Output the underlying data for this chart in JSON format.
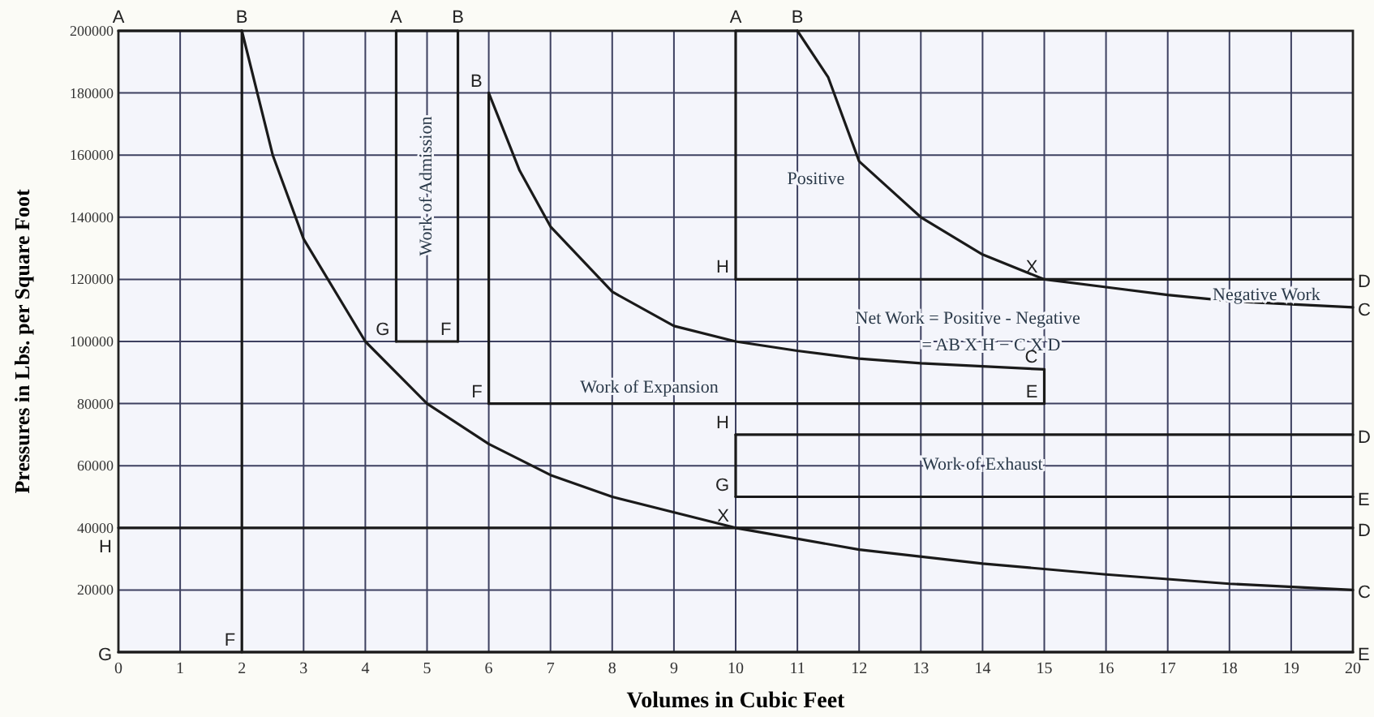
{
  "chart_data": {
    "type": "line",
    "xlabel": "Volumes in Cubic Feet",
    "ylabel": "Pressures in Lbs. per Square Foot",
    "xlim": [
      0,
      20
    ],
    "ylim": [
      0,
      200000
    ],
    "xticks": [
      0,
      1,
      2,
      3,
      4,
      5,
      6,
      7,
      8,
      9,
      10,
      11,
      12,
      13,
      14,
      15,
      16,
      17,
      18,
      19,
      20
    ],
    "yticks": [
      {
        "value": 0,
        "label": null
      },
      20000,
      40000,
      60000,
      80000,
      100000,
      120000,
      140000,
      160000,
      180000,
      200000
    ],
    "grid": true,
    "marker": "none",
    "line_style": "solid",
    "series": [
      {
        "color": "#1a1a1a",
        "x": [
          0,
          2
        ],
        "values": [
          200000,
          200000
        ]
      },
      {
        "color": "#1a1a1a",
        "x": [
          2,
          2.5,
          3,
          4,
          5,
          6,
          7,
          8,
          10,
          12,
          14,
          16,
          18,
          20
        ],
        "values": [
          200000,
          160000,
          133000,
          100000,
          80000,
          67000,
          57000,
          50000,
          40000,
          33000,
          28500,
          25000,
          22000,
          20000
        ]
      },
      {
        "color": "#1a1a1a",
        "x": [
          2,
          2
        ],
        "values": [
          200000,
          0
        ]
      },
      {
        "color": "#1a1a1a",
        "x": [
          0,
          20
        ],
        "values": [
          40000,
          40000
        ]
      },
      {
        "color": "#1a1a1a",
        "x": [
          0,
          20
        ],
        "values": [
          0,
          0
        ]
      },
      {
        "color": "#1a1a1a",
        "x": [
          4.5,
          4.5
        ],
        "values": [
          100000,
          200000
        ]
      },
      {
        "color": "#1a1a1a",
        "x": [
          5.5,
          5.5
        ],
        "values": [
          100000,
          200000
        ]
      },
      {
        "color": "#1a1a1a",
        "x": [
          4.5,
          5.5
        ],
        "values": [
          200000,
          200000
        ]
      },
      {
        "color": "#1a1a1a",
        "x": [
          4.5,
          5.5
        ],
        "values": [
          100000,
          100000
        ]
      },
      {
        "color": "#1a1a1a",
        "x": [
          6,
          15
        ],
        "values": [
          80000,
          80000
        ]
      },
      {
        "color": "#1a1a1a",
        "x": [
          6,
          6
        ],
        "values": [
          80000,
          180000
        ]
      },
      {
        "color": "#1a1a1a",
        "x": [
          6,
          6.5,
          7,
          8,
          9,
          10,
          11,
          12,
          13,
          14,
          15
        ],
        "values": [
          180000,
          155000,
          137000,
          116000,
          105000,
          100000,
          97000,
          94500,
          93000,
          92000,
          91000
        ]
      },
      {
        "color": "#1a1a1a",
        "x": [
          15,
          15
        ],
        "values": [
          80000,
          91000
        ]
      },
      {
        "color": "#1a1a1a",
        "x": [
          10,
          10
        ],
        "values": [
          120000,
          200000
        ]
      },
      {
        "color": "#1a1a1a",
        "x": [
          10,
          11
        ],
        "values": [
          200000,
          200000
        ]
      },
      {
        "color": "#1a1a1a",
        "x": [
          11,
          11.5,
          12,
          13,
          14,
          15,
          16,
          17,
          18,
          19,
          20
        ],
        "values": [
          200000,
          185000,
          158000,
          140000,
          128000,
          120000,
          117500,
          115000,
          113000,
          112000,
          111000
        ]
      },
      {
        "color": "#1a1a1a",
        "x": [
          10,
          20
        ],
        "values": [
          120000,
          120000
        ]
      },
      {
        "color": "#1a1a1a",
        "x": [
          10,
          20
        ],
        "values": [
          70000,
          70000
        ]
      },
      {
        "color": "#1a1a1a",
        "x": [
          10,
          20
        ],
        "values": [
          50000,
          50000
        ]
      },
      {
        "color": "#1a1a1a",
        "x": [
          10,
          10
        ],
        "values": [
          50000,
          70000
        ]
      }
    ],
    "annotations": [
      "Work of Admission",
      "Positive",
      "Net Work = Positive - Negative",
      "= AB X H − C X D",
      "Work of Expansion",
      "Negative Work",
      "Work of Exhaust",
      {
        "text": "A",
        "x": 0,
        "y": 200000
      },
      {
        "text": "B",
        "x": 2,
        "y": 200000
      },
      {
        "text": "F",
        "x": 2,
        "y": 0
      },
      {
        "text": "G",
        "x": 0,
        "y": 0
      },
      {
        "text": "H",
        "x": 0,
        "y": 40000
      },
      {
        "text": "X",
        "x": 10,
        "y": 40000
      },
      {
        "text": "D",
        "x": 20,
        "y": 40000
      },
      {
        "text": "C",
        "x": 20,
        "y": 20000
      },
      {
        "text": "E",
        "x": 20,
        "y": 0
      },
      {
        "text": "A",
        "x": 4.5,
        "y": 200000
      },
      {
        "text": "B",
        "x": 5.5,
        "y": 200000
      },
      {
        "text": "G",
        "x": 4.5,
        "y": 100000
      },
      {
        "text": "F",
        "x": 5.5,
        "y": 100000
      },
      {
        "text": "B",
        "x": 6,
        "y": 180000
      },
      {
        "text": "F",
        "x": 6,
        "y": 80000
      },
      {
        "text": "C",
        "x": 15,
        "y": 91000
      },
      {
        "text": "E",
        "x": 15,
        "y": 80000
      },
      {
        "text": "A",
        "x": 10,
        "y": 200000
      },
      {
        "text": "B",
        "x": 11,
        "y": 200000
      },
      {
        "text": "H",
        "x": 10,
        "y": 120000
      },
      {
        "text": "X",
        "x": 15,
        "y": 120000
      },
      {
        "text": "D",
        "x": 20,
        "y": 120000
      },
      {
        "text": "C",
        "x": 20,
        "y": 111000
      },
      {
        "text": "H",
        "x": 10,
        "y": 70000
      },
      {
        "text": "G",
        "x": 10,
        "y": 50000
      },
      {
        "text": "D",
        "x": 20,
        "y": 70000
      },
      {
        "text": "E",
        "x": 20,
        "y": 50000
      }
    ]
  }
}
